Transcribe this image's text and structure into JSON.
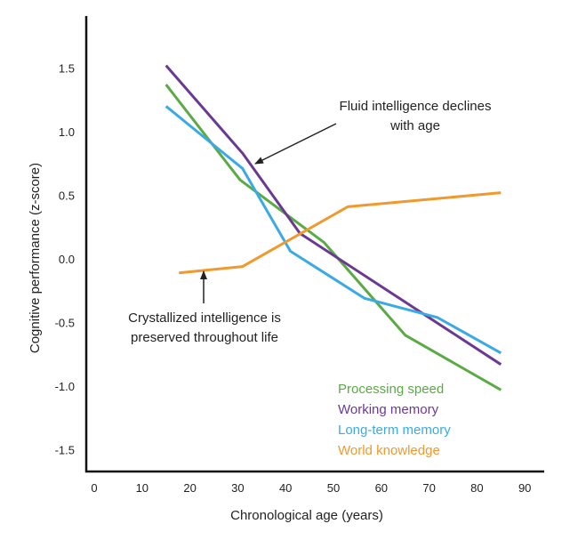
{
  "chart_data": {
    "type": "line",
    "title": "",
    "xlabel": "Chronological age  (years)",
    "ylabel": "Cognitive performance (z-score)",
    "xlim": [
      0,
      90
    ],
    "ylim": [
      -1.75,
      1.9
    ],
    "xticks": [
      "0",
      "10",
      "20",
      "30",
      "40",
      "50",
      "60",
      "70",
      "80",
      "90"
    ],
    "xtick_values": [
      0,
      10,
      20,
      30,
      40,
      50,
      60,
      70,
      80,
      90
    ],
    "yticks": [
      "1.5",
      "1.0",
      "0.5",
      "0.0",
      "-0.5",
      "-1.0",
      "-1.5"
    ],
    "ytick_values": [
      1.5,
      1.0,
      0.5,
      0.0,
      -0.5,
      -1.0,
      -1.5
    ],
    "grid": false,
    "legend_position": "bottom-right",
    "series": [
      {
        "name": "Processing speed",
        "color": "#5aaa46",
        "x": [
          15,
          30.5,
          48,
          65,
          85
        ],
        "y": [
          1.37,
          0.62,
          0.13,
          -0.6,
          -1.03
        ]
      },
      {
        "name": "Working memory",
        "color": "#6a3a93",
        "x": [
          15,
          31,
          43,
          85
        ],
        "y": [
          1.52,
          0.83,
          0.2,
          -0.83
        ]
      },
      {
        "name": "Long-term  memory",
        "color": "#3aaae6",
        "x": [
          15,
          31,
          41,
          56.5,
          71.7,
          85
        ],
        "y": [
          1.2,
          0.71,
          0.06,
          -0.31,
          -0.46,
          -0.74
        ]
      },
      {
        "name": "World knowledge",
        "color": "#f0992e",
        "x": [
          17.7,
          31,
          53,
          85
        ],
        "y": [
          -0.11,
          -0.06,
          0.41,
          0.52
        ]
      }
    ],
    "annotations": [
      {
        "lines": [
          "Fluid intelligence declines",
          "with age"
        ],
        "points_to": [
          31,
          0.8
        ]
      },
      {
        "lines": [
          "Crystallized intelligence is",
          "preserved throughout life"
        ],
        "points_to": [
          23,
          -0.1
        ]
      }
    ]
  }
}
